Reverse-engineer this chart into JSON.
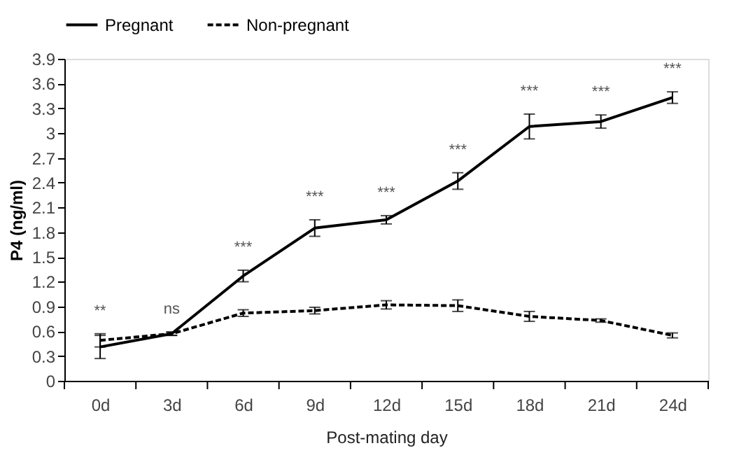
{
  "chart_data": {
    "type": "line",
    "xlabel": "Post-mating day",
    "ylabel": "P4 (ng/ml)",
    "categories": [
      "0d",
      "3d",
      "6d",
      "9d",
      "12d",
      "15d",
      "18d",
      "21d",
      "24d"
    ],
    "series": [
      {
        "name": "Pregnant",
        "color": "#000000",
        "line_style": "solid",
        "values": [
          0.41,
          0.57,
          1.27,
          1.85,
          1.95,
          2.42,
          3.08,
          3.14,
          3.43
        ],
        "errors": [
          0.14,
          0.02,
          0.07,
          0.1,
          0.05,
          0.1,
          0.15,
          0.08,
          0.07
        ]
      },
      {
        "name": "Non-pregnant",
        "color": "#000000",
        "line_style": "dashed",
        "values": [
          0.49,
          0.57,
          0.82,
          0.85,
          0.92,
          0.91,
          0.78,
          0.73,
          0.55
        ],
        "errors": [
          0.08,
          0.02,
          0.04,
          0.04,
          0.05,
          0.07,
          0.06,
          0.02,
          0.03
        ]
      }
    ],
    "ylim": [
      0,
      3.9
    ],
    "yticks": [
      {
        "value": 0,
        "label": "0"
      },
      0.3,
      0.6,
      0.9,
      1.2,
      1.5,
      1.8,
      2.1,
      2.4,
      2.7,
      3,
      3.3,
      3.6,
      3.9
    ],
    "annotations": [
      "**",
      "ns",
      "***",
      "***",
      "***",
      "***",
      "***",
      "***",
      "***"
    ],
    "grid": false,
    "legend": "top",
    "marker": "none"
  }
}
